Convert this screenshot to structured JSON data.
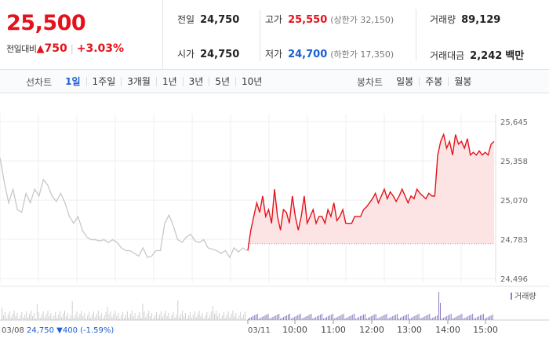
{
  "summary": {
    "current_price": "25,500",
    "change_label": "전일대비",
    "change_arrow": "▲",
    "change_amount": "750",
    "change_percent": "+3.03%",
    "prev_close": {
      "label": "전일",
      "value": "24,750"
    },
    "open": {
      "label": "시가",
      "value": "24,750"
    },
    "high": {
      "label": "고가",
      "value": "25,550",
      "sub": "(상한가 32,150)"
    },
    "low": {
      "label": "저가",
      "value": "24,700",
      "sub": "(하한가 17,350)"
    },
    "volume": {
      "label": "거래량",
      "value": "89,129"
    },
    "trade_value": {
      "label": "거래대금",
      "value": "2,242",
      "unit": "백만"
    }
  },
  "tabs": {
    "line_label": "선차트",
    "line_items": [
      {
        "label": "1일",
        "active": true
      },
      {
        "label": "1주일",
        "active": false
      },
      {
        "label": "3개월",
        "active": false
      },
      {
        "label": "1년",
        "active": false
      },
      {
        "label": "3년",
        "active": false
      },
      {
        "label": "5년",
        "active": false
      },
      {
        "label": "10년",
        "active": false
      }
    ],
    "candle_label": "봉차트",
    "candle_items": [
      {
        "label": "일봉"
      },
      {
        "label": "주봉"
      },
      {
        "label": "월봉"
      }
    ]
  },
  "chart_data": {
    "type": "line",
    "y_ticks": [
      "25,645",
      "25,358",
      "25,070",
      "24,783",
      "24,496"
    ],
    "y_tick_values": [
      25645,
      25358,
      25070,
      24783,
      24496
    ],
    "ylim": [
      24496,
      25645
    ],
    "reference_price": 24750,
    "volume_legend": "거래량",
    "prev_day": {
      "date": "03/08",
      "close": "24,750",
      "arrow": "▼",
      "change": "400",
      "change_pct": "(-1.59%)",
      "color": "#c8c8c8",
      "values": [
        25380,
        25200,
        25050,
        25150,
        25000,
        24980,
        25120,
        25050,
        25150,
        25100,
        25220,
        25180,
        25100,
        25060,
        25120,
        25050,
        24950,
        24900,
        24950,
        24850,
        24800,
        24780,
        24780,
        24770,
        24780,
        24760,
        24780,
        24760,
        24720,
        24700,
        24700,
        24680,
        24660,
        24720,
        24650,
        24660,
        24700,
        24700,
        24900,
        24960,
        24880,
        24780,
        24760,
        24800,
        24820,
        24770,
        24760,
        24780,
        24720,
        24710,
        24700,
        24680,
        24700,
        24650,
        24720,
        24690,
        24720,
        24700
      ]
    },
    "today": {
      "date": "03/11",
      "color": "#e3131b",
      "fill": "#fde4e4",
      "x_ticks": [
        "10:00",
        "11:00",
        "12:00",
        "13:00",
        "14:00",
        "15:00"
      ],
      "values": [
        24700,
        24850,
        24950,
        25050,
        24980,
        25100,
        24950,
        25000,
        24900,
        25150,
        24950,
        24850,
        25000,
        24980,
        24900,
        25100,
        24950,
        24850,
        24950,
        25100,
        24900,
        24950,
        25000,
        24900,
        24950,
        24950,
        24900,
        25000,
        24950,
        25050,
        24920,
        24950,
        25000,
        24900,
        24900,
        24900,
        24950,
        24950,
        24950,
        25000,
        25020,
        25050,
        25080,
        25120,
        25050,
        25100,
        25150,
        25080,
        25130,
        25100,
        25060,
        25100,
        25150,
        25100,
        25050,
        25100,
        25080,
        25150,
        25120,
        25100,
        25080,
        25120,
        25100,
        25100,
        25400,
        25500,
        25550,
        25450,
        25500,
        25400,
        25550,
        25480,
        25500,
        25450,
        25520,
        25400,
        25420,
        25400,
        25430,
        25400,
        25420,
        25400,
        25480,
        25500
      ]
    }
  }
}
